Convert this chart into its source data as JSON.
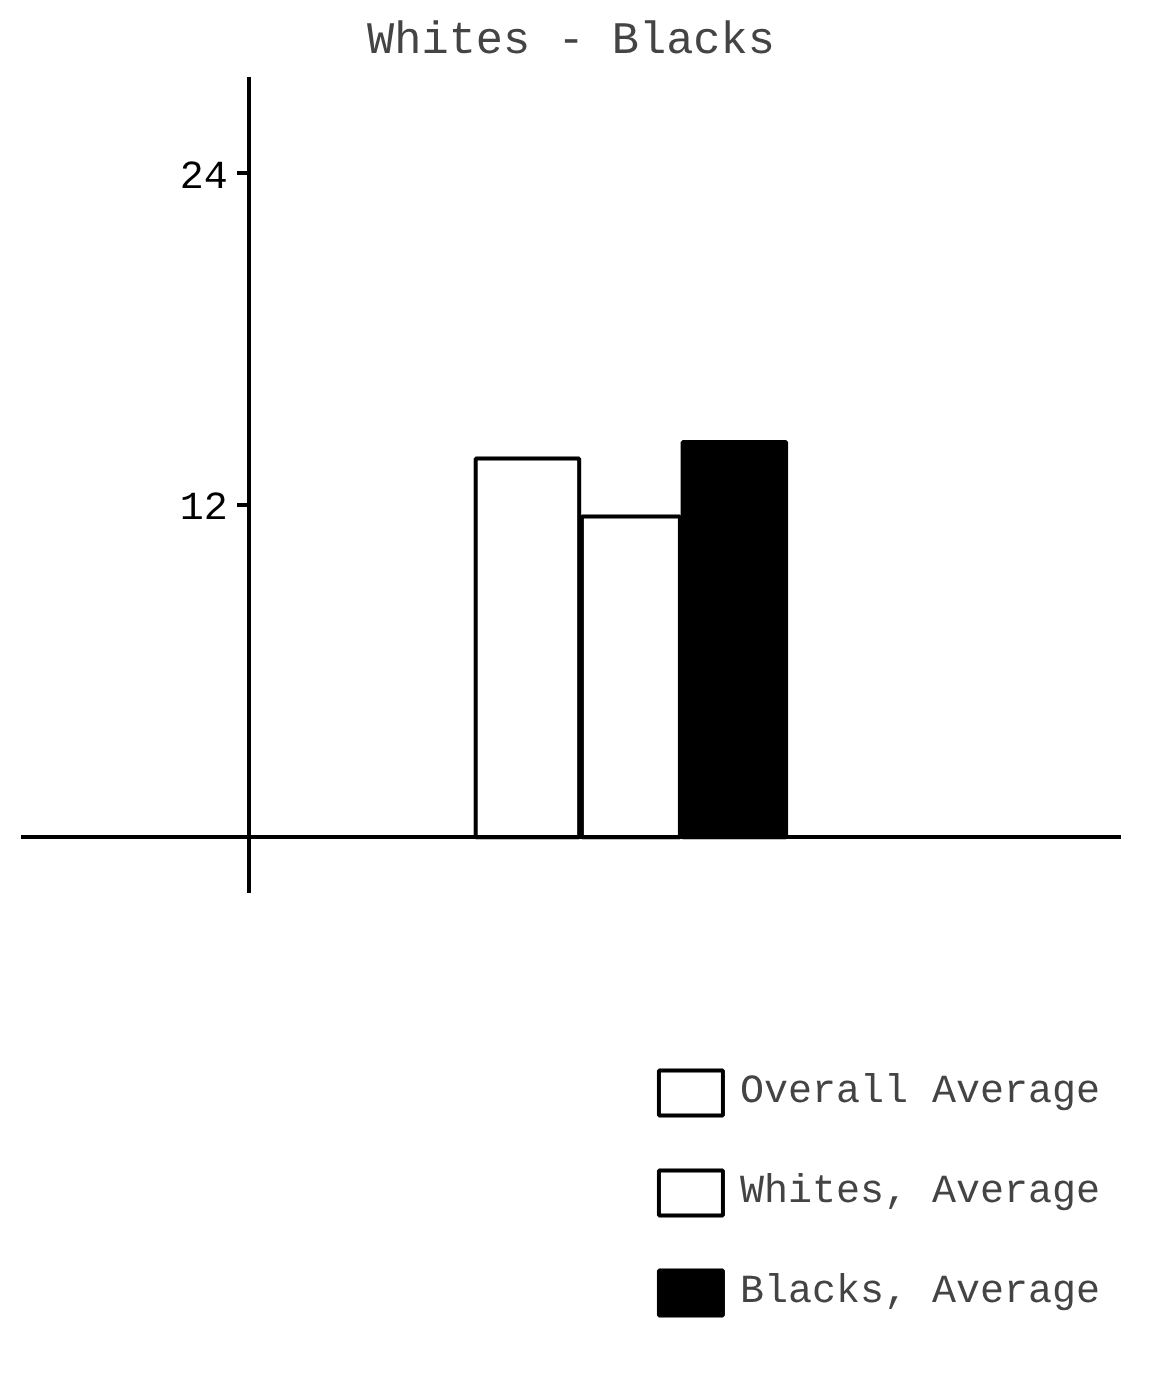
{
  "chart_data": {
    "type": "bar",
    "title": "Whites - Blacks",
    "categories": [
      null
    ],
    "series": [
      {
        "name": "Overall Average",
        "color": "#ffffff",
        "values": [
          13.7
        ]
      },
      {
        "name": "Whites, Average",
        "color": "#ffffff",
        "values": [
          11.6
        ]
      },
      {
        "name": "Blacks, Average",
        "color": "#000000",
        "values": [
          14.3
        ]
      }
    ],
    "ylim": [
      -2,
      27.5
    ],
    "yticks": [
      12,
      24
    ],
    "tick_labels": "y",
    "grid": false,
    "legend": "bottom right"
  }
}
